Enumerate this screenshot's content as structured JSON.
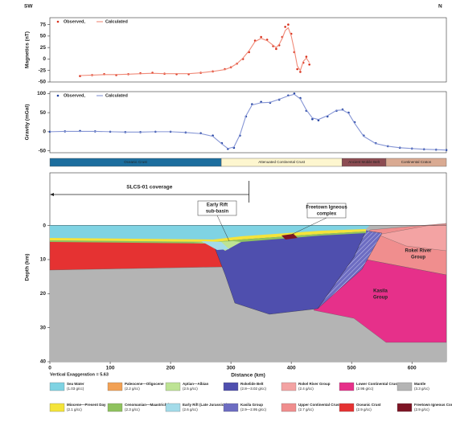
{
  "header": {
    "left": "SW",
    "right": "N"
  },
  "chart_data": [
    {
      "type": "line",
      "ylabel": "Magnetics (nT)",
      "xlim": [
        0,
        657
      ],
      "ylim": [
        -50,
        90
      ],
      "yticks": [
        -50,
        -25,
        0,
        25,
        50,
        75
      ],
      "x": [
        50,
        70,
        90,
        110,
        130,
        150,
        170,
        190,
        210,
        230,
        250,
        270,
        290,
        300,
        310,
        320,
        330,
        340,
        350,
        360,
        370,
        375,
        380,
        385,
        390,
        395,
        400,
        405,
        410,
        415,
        420,
        425,
        430
      ],
      "series": [
        {
          "name": "Observed,",
          "color": "#d8301c",
          "style": "points",
          "values": [
            -37,
            -35,
            -33,
            -35,
            -33,
            -31,
            -30,
            -32,
            -33,
            -33,
            -30,
            -27,
            -22,
            -18,
            -10,
            0,
            15,
            40,
            48,
            42,
            28,
            22,
            30,
            48,
            70,
            75,
            55,
            15,
            -22,
            -28,
            -8,
            5,
            -12
          ]
        },
        {
          "name": "Calculated",
          "color": "#f08a78",
          "style": "line",
          "values": [
            -36,
            -35,
            -34,
            -34,
            -33,
            -32,
            -31,
            -32,
            -32,
            -32,
            -30,
            -27,
            -23,
            -18,
            -10,
            2,
            18,
            38,
            45,
            40,
            30,
            25,
            32,
            45,
            62,
            68,
            50,
            20,
            -15,
            -25,
            -5,
            2,
            -8
          ]
        }
      ]
    },
    {
      "type": "line",
      "ylabel": "Gravity (mGal)",
      "xlim": [
        0,
        657
      ],
      "ylim": [
        -55,
        105
      ],
      "yticks": [
        -50,
        0,
        50,
        100
      ],
      "x": [
        0,
        25,
        50,
        75,
        100,
        125,
        150,
        175,
        200,
        225,
        250,
        270,
        285,
        295,
        305,
        315,
        325,
        335,
        350,
        365,
        380,
        395,
        405,
        415,
        425,
        435,
        445,
        460,
        475,
        485,
        495,
        505,
        520,
        540,
        560,
        580,
        600,
        620,
        640,
        657
      ],
      "series": [
        {
          "name": "Observed,",
          "color": "#1f3f9f",
          "style": "points",
          "values": [
            0,
            1,
            2,
            1,
            0,
            -1,
            -1,
            0,
            0,
            -2,
            -4,
            -10,
            -30,
            -45,
            -42,
            -10,
            40,
            72,
            78,
            76,
            84,
            95,
            100,
            88,
            55,
            33,
            30,
            40,
            55,
            58,
            50,
            25,
            -10,
            -30,
            -38,
            -42,
            -44,
            -46,
            -47,
            -48
          ]
        },
        {
          "name": "Calculated",
          "color": "#8595d5",
          "style": "line",
          "values": [
            0,
            1,
            1,
            1,
            0,
            -1,
            -1,
            0,
            0,
            -2,
            -5,
            -12,
            -32,
            -44,
            -40,
            -8,
            42,
            70,
            76,
            77,
            85,
            94,
            98,
            86,
            57,
            36,
            32,
            42,
            56,
            57,
            48,
            22,
            -12,
            -31,
            -38,
            -42,
            -44,
            -46,
            -47,
            -48
          ]
        }
      ]
    },
    {
      "type": "section",
      "xlabel": "Distance (km)",
      "ylabel": "Depth (km)",
      "xlim": [
        0,
        657
      ],
      "ylim": [
        -15.5,
        40
      ],
      "xticks": [
        0,
        100,
        200,
        300,
        400,
        500,
        600
      ],
      "yticks": [
        0,
        10,
        20,
        30,
        40
      ],
      "zones": [
        {
          "name": "Oceanic Crust",
          "color": "#1c6e9e",
          "text_color": "#ffffff",
          "start": 0,
          "end": 284
        },
        {
          "name": "Attenuated Continental Crust",
          "color": "#fdf6cf",
          "text_color": "#333333",
          "start": 284,
          "end": 484
        },
        {
          "name": "Ancient Mobile Belt",
          "color": "#8c4c52",
          "text_color": "#ffffff",
          "start": 484,
          "end": 557
        },
        {
          "name": "Continental Craton",
          "color": "#d9aa92",
          "text_color": "#333333",
          "start": 557,
          "end": 657
        }
      ],
      "coverage": {
        "label": "SLCS-01 coverage",
        "range": [
          0,
          330
        ]
      },
      "annotations": [
        {
          "lines": [
            "Early Rift",
            "sub-basin"
          ]
        },
        {
          "lines": [
            "Freetown Igneous",
            "complex"
          ]
        },
        {
          "lines": [
            "Rokel River",
            "Group"
          ]
        },
        {
          "lines": [
            "Kasila",
            "Group"
          ]
        }
      ],
      "exaggeration": "Vertical Exaggeration = 5.63"
    }
  ],
  "legend": [
    {
      "name": "Sea Water",
      "density": "(1.03 g/cc)",
      "color": "#7fd3e3"
    },
    {
      "name": "Miocene—Present Day",
      "density": "(2.1 g/cc)",
      "color": "#f4e43a"
    },
    {
      "name": "Paleocene—Oligocene",
      "density": "(2.2 g/cc)",
      "color": "#f2a154"
    },
    {
      "name": "Cenomanian—Maastrichtian",
      "density": "(2.3 g/cc)",
      "color": "#8fc25e"
    },
    {
      "name": "Aptian—Albian",
      "density": "(2.5 g/cc)",
      "color": "#bde394"
    },
    {
      "name": "Early Rift (Late Jurassic?)",
      "density": "(2.6 g/cc)",
      "color": "#a3dbe9"
    },
    {
      "name": "Rokelide Belt",
      "density": "(2.8—3.02 g/cc)",
      "color": "#4f4fae"
    },
    {
      "name": "Kasila Group",
      "density": "(2.9—2.95 g/cc)",
      "color": "#6d6dc2"
    },
    {
      "name": "Rokel River Group",
      "density": "(2.4 g/cc)",
      "color": "#f3a3a3"
    },
    {
      "name": "Upper Continental Crust",
      "density": "(2.7 g/cc)",
      "color": "#f08e8e"
    },
    {
      "name": "Lower Continental Crust",
      "density": "(2.95 g/cc)",
      "color": "#e6308a"
    },
    {
      "name": "Oceanic Crust",
      "density": "(2.9 g/cc)",
      "color": "#e53232"
    },
    {
      "name": "Mantle",
      "density": "(3.3 g/cc)",
      "color": "#b4b4b4"
    },
    {
      "name": "Freetown Igneous Complex",
      "density": "(2.9 g/cc)",
      "color": "#7d1424"
    }
  ]
}
